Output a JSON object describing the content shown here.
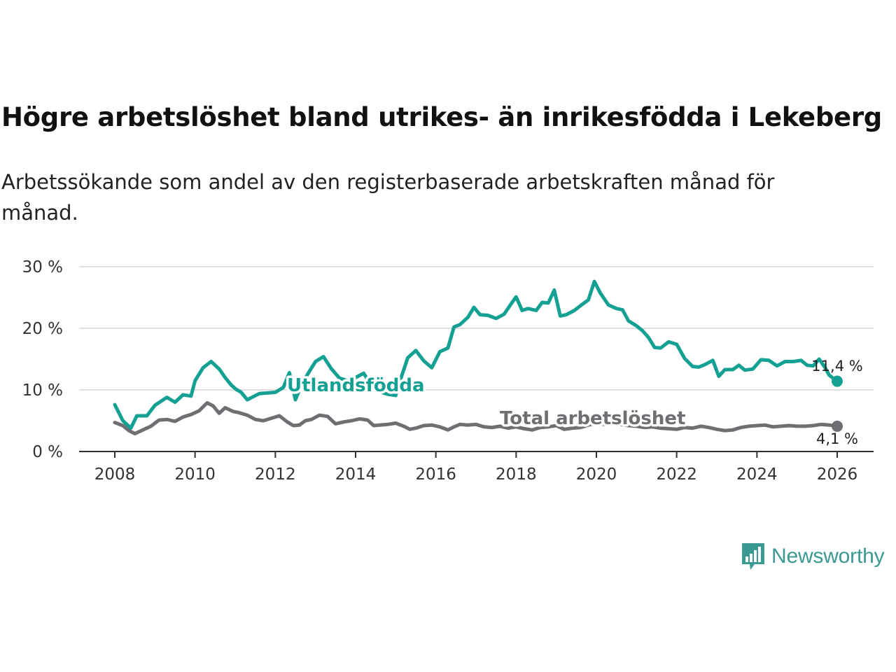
{
  "title": "Högre arbetslöshet bland utrikes- än inrikesfödda i Lekeberg",
  "subtitle": "Arbetssökande som andel av den registerbaserade arbetskraften månad för månad.",
  "brand": "Newsworthy",
  "chart_data": {
    "type": "line",
    "title": "Högre arbetslöshet bland utrikes- än inrikesfödda i Lekeberg",
    "xlabel": "",
    "ylabel": "",
    "xlim": [
      2008,
      2026
    ],
    "ylim": [
      0,
      30
    ],
    "grid": true,
    "x_ticks": [
      "2008",
      "2010",
      "2012",
      "2014",
      "2016",
      "2018",
      "2020",
      "2022",
      "2024",
      "2026"
    ],
    "y_ticks": [
      "0 %",
      "10 %",
      "20 %",
      "30 %"
    ],
    "y_tick_values": [
      0,
      10,
      20,
      30
    ],
    "colors": {
      "foreign": "#14a193",
      "total": "#6e6e73"
    },
    "series": [
      {
        "name": "Utlandsfödda",
        "key": "foreign",
        "end_label": "11,4 %",
        "points": [
          [
            2008.0,
            7.6
          ],
          [
            2008.2,
            5.0
          ],
          [
            2008.4,
            3.8
          ],
          [
            2008.55,
            5.8
          ],
          [
            2008.8,
            5.8
          ],
          [
            2009.0,
            7.5
          ],
          [
            2009.3,
            8.8
          ],
          [
            2009.5,
            8.0
          ],
          [
            2009.7,
            9.2
          ],
          [
            2009.9,
            9.0
          ],
          [
            2010.0,
            11.5
          ],
          [
            2010.2,
            13.6
          ],
          [
            2010.4,
            14.6
          ],
          [
            2010.6,
            13.4
          ],
          [
            2010.75,
            12.0
          ],
          [
            2010.9,
            10.8
          ],
          [
            2011.0,
            10.2
          ],
          [
            2011.15,
            9.6
          ],
          [
            2011.3,
            8.4
          ],
          [
            2011.45,
            8.9
          ],
          [
            2011.6,
            9.4
          ],
          [
            2011.8,
            9.5
          ],
          [
            2012.0,
            9.6
          ],
          [
            2012.2,
            10.4
          ],
          [
            2012.35,
            12.8
          ],
          [
            2012.5,
            8.4
          ],
          [
            2012.65,
            10.8
          ],
          [
            2012.8,
            12.5
          ],
          [
            2013.0,
            14.6
          ],
          [
            2013.2,
            15.4
          ],
          [
            2013.4,
            13.4
          ],
          [
            2013.6,
            11.9
          ],
          [
            2013.8,
            11.5
          ],
          [
            2014.0,
            12.0
          ],
          [
            2014.2,
            12.7
          ],
          [
            2014.4,
            10.7
          ],
          [
            2014.6,
            9.7
          ],
          [
            2014.8,
            9.3
          ],
          [
            2015.0,
            9.1
          ],
          [
            2015.15,
            12.3
          ],
          [
            2015.3,
            15.2
          ],
          [
            2015.5,
            16.4
          ],
          [
            2015.7,
            14.7
          ],
          [
            2015.9,
            13.6
          ],
          [
            2016.1,
            16.2
          ],
          [
            2016.3,
            16.8
          ],
          [
            2016.45,
            20.2
          ],
          [
            2016.6,
            20.6
          ],
          [
            2016.8,
            21.8
          ],
          [
            2016.95,
            23.4
          ],
          [
            2017.1,
            22.2
          ],
          [
            2017.3,
            22.1
          ],
          [
            2017.5,
            21.6
          ],
          [
            2017.7,
            22.3
          ],
          [
            2017.9,
            24.2
          ],
          [
            2018.0,
            25.1
          ],
          [
            2018.15,
            22.9
          ],
          [
            2018.3,
            23.2
          ],
          [
            2018.5,
            22.9
          ],
          [
            2018.65,
            24.2
          ],
          [
            2018.8,
            24.1
          ],
          [
            2018.95,
            26.2
          ],
          [
            2019.1,
            22.0
          ],
          [
            2019.25,
            22.2
          ],
          [
            2019.45,
            22.9
          ],
          [
            2019.65,
            23.9
          ],
          [
            2019.8,
            24.6
          ],
          [
            2019.95,
            27.6
          ],
          [
            2020.1,
            25.7
          ],
          [
            2020.3,
            23.8
          ],
          [
            2020.5,
            23.2
          ],
          [
            2020.65,
            23.0
          ],
          [
            2020.8,
            21.2
          ],
          [
            2021.0,
            20.4
          ],
          [
            2021.15,
            19.6
          ],
          [
            2021.3,
            18.5
          ],
          [
            2021.45,
            16.9
          ],
          [
            2021.6,
            16.8
          ],
          [
            2021.8,
            17.8
          ],
          [
            2022.0,
            17.4
          ],
          [
            2022.2,
            15.1
          ],
          [
            2022.4,
            13.8
          ],
          [
            2022.55,
            13.7
          ],
          [
            2022.7,
            14.1
          ],
          [
            2022.9,
            14.8
          ],
          [
            2023.05,
            12.2
          ],
          [
            2023.2,
            13.3
          ],
          [
            2023.4,
            13.3
          ],
          [
            2023.55,
            14.0
          ],
          [
            2023.7,
            13.2
          ],
          [
            2023.9,
            13.4
          ],
          [
            2024.1,
            14.9
          ],
          [
            2024.3,
            14.8
          ],
          [
            2024.5,
            13.9
          ],
          [
            2024.7,
            14.6
          ],
          [
            2024.9,
            14.6
          ],
          [
            2025.1,
            14.8
          ],
          [
            2025.25,
            14.0
          ],
          [
            2025.4,
            13.9
          ],
          [
            2025.55,
            15.0
          ],
          [
            2025.7,
            13.6
          ],
          [
            2025.8,
            12.4
          ],
          [
            2026.0,
            11.4
          ]
        ]
      },
      {
        "name": "Total arbetslöshet",
        "key": "total",
        "end_label": "4,1 %",
        "points": [
          [
            2008.0,
            4.7
          ],
          [
            2008.2,
            4.2
          ],
          [
            2008.35,
            3.4
          ],
          [
            2008.5,
            2.9
          ],
          [
            2008.7,
            3.5
          ],
          [
            2008.9,
            4.1
          ],
          [
            2009.1,
            5.1
          ],
          [
            2009.3,
            5.2
          ],
          [
            2009.5,
            4.9
          ],
          [
            2009.7,
            5.6
          ],
          [
            2009.9,
            6.0
          ],
          [
            2010.1,
            6.6
          ],
          [
            2010.3,
            7.9
          ],
          [
            2010.45,
            7.4
          ],
          [
            2010.6,
            6.2
          ],
          [
            2010.75,
            7.1
          ],
          [
            2010.95,
            6.5
          ],
          [
            2011.1,
            6.3
          ],
          [
            2011.3,
            5.9
          ],
          [
            2011.5,
            5.2
          ],
          [
            2011.7,
            5.0
          ],
          [
            2011.9,
            5.4
          ],
          [
            2012.1,
            5.8
          ],
          [
            2012.3,
            4.8
          ],
          [
            2012.45,
            4.2
          ],
          [
            2012.6,
            4.3
          ],
          [
            2012.75,
            5.0
          ],
          [
            2012.9,
            5.2
          ],
          [
            2013.1,
            5.9
          ],
          [
            2013.3,
            5.7
          ],
          [
            2013.5,
            4.5
          ],
          [
            2013.7,
            4.8
          ],
          [
            2013.9,
            5.0
          ],
          [
            2014.1,
            5.3
          ],
          [
            2014.3,
            5.1
          ],
          [
            2014.45,
            4.2
          ],
          [
            2014.6,
            4.3
          ],
          [
            2014.8,
            4.4
          ],
          [
            2015.0,
            4.6
          ],
          [
            2015.2,
            4.1
          ],
          [
            2015.35,
            3.6
          ],
          [
            2015.5,
            3.8
          ],
          [
            2015.7,
            4.2
          ],
          [
            2015.9,
            4.3
          ],
          [
            2016.1,
            4.0
          ],
          [
            2016.3,
            3.5
          ],
          [
            2016.45,
            4.0
          ],
          [
            2016.6,
            4.4
          ],
          [
            2016.8,
            4.3
          ],
          [
            2017.0,
            4.4
          ],
          [
            2017.2,
            4.0
          ],
          [
            2017.4,
            3.9
          ],
          [
            2017.6,
            4.1
          ],
          [
            2017.8,
            3.8
          ],
          [
            2018.0,
            4.0
          ],
          [
            2018.2,
            3.7
          ],
          [
            2018.4,
            3.5
          ],
          [
            2018.6,
            3.9
          ],
          [
            2018.8,
            4.0
          ],
          [
            2019.0,
            4.2
          ],
          [
            2019.2,
            3.6
          ],
          [
            2019.4,
            3.8
          ],
          [
            2019.6,
            3.9
          ],
          [
            2019.8,
            4.3
          ],
          [
            2020.0,
            4.6
          ],
          [
            2020.2,
            4.4
          ],
          [
            2020.4,
            4.6
          ],
          [
            2020.6,
            4.4
          ],
          [
            2020.8,
            4.2
          ],
          [
            2021.0,
            4.1
          ],
          [
            2021.2,
            3.9
          ],
          [
            2021.4,
            4.0
          ],
          [
            2021.6,
            3.8
          ],
          [
            2021.8,
            3.7
          ],
          [
            2022.0,
            3.6
          ],
          [
            2022.2,
            3.9
          ],
          [
            2022.4,
            3.8
          ],
          [
            2022.6,
            4.1
          ],
          [
            2022.8,
            3.9
          ],
          [
            2023.0,
            3.6
          ],
          [
            2023.2,
            3.4
          ],
          [
            2023.4,
            3.5
          ],
          [
            2023.6,
            3.9
          ],
          [
            2023.8,
            4.1
          ],
          [
            2024.0,
            4.2
          ],
          [
            2024.2,
            4.3
          ],
          [
            2024.4,
            4.0
          ],
          [
            2024.6,
            4.1
          ],
          [
            2024.8,
            4.2
          ],
          [
            2025.0,
            4.1
          ],
          [
            2025.2,
            4.1
          ],
          [
            2025.4,
            4.2
          ],
          [
            2025.6,
            4.4
          ],
          [
            2025.8,
            4.3
          ],
          [
            2026.0,
            4.1
          ]
        ]
      }
    ]
  }
}
